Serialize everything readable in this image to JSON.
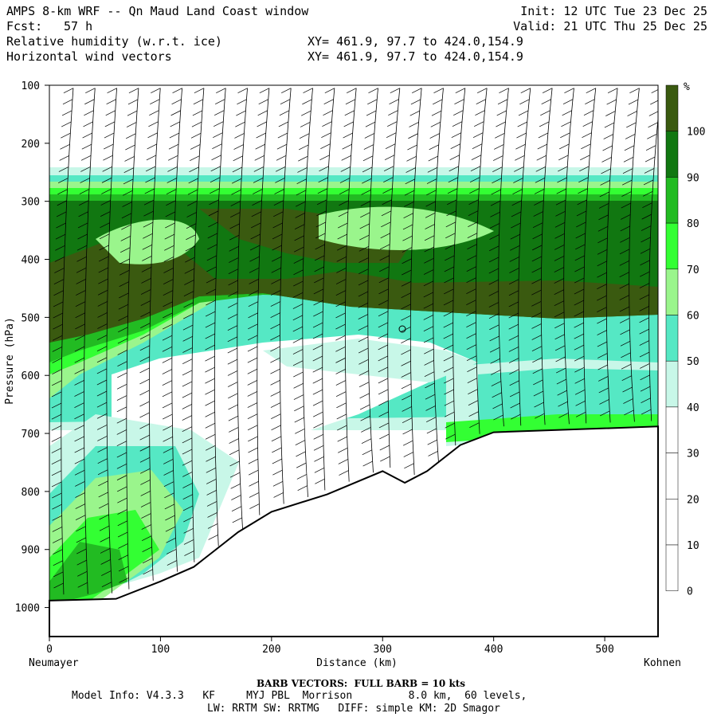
{
  "header": {
    "title_left": "AMPS 8-km WRF -- Qn Maud Land Coast window",
    "fcst_label": "Fcst:",
    "fcst_value": "57 h",
    "field1": "Relative humidity (w.r.t. ice)",
    "field2": "Horizontal wind vectors",
    "xy1": "XY= 461.9, 97.7 to 424.0,154.9",
    "xy2": "XY= 461.9, 97.7 to 424.0,154.9",
    "init": "Init: 12 UTC Tue 23 Dec 25",
    "valid": "Valid: 21 UTC Thu 25 Dec 25"
  },
  "footer": {
    "barb_note": "BARB VECTORS:  FULL BARB = 10 kts",
    "model_info_1": "Model Info: V4.3.3   KF     MYJ PBL  Morrison         8.0 km,  60 levels,",
    "model_info_2": "LW: RRTM SW: RRTMG   DIFF: simple KM: 2D Smagor"
  },
  "chart_data": {
    "type": "heatmap",
    "title": "Relative humidity (w.r.t. ice)",
    "xlabel": "Distance (km)",
    "ylabel": "Pressure (hPa)",
    "x_left_label": "Neumayer",
    "x_right_label": "Kohnen",
    "xlim": [
      0,
      548
    ],
    "ylim": [
      1050,
      100
    ],
    "x_ticks": [
      0,
      100,
      200,
      300,
      400,
      500
    ],
    "y_ticks": [
      100,
      200,
      300,
      400,
      500,
      600,
      700,
      800,
      900,
      1000
    ],
    "colorbar": {
      "unit": "%",
      "levels": [
        0,
        10,
        20,
        30,
        40,
        50,
        60,
        70,
        80,
        90,
        100
      ],
      "colors": [
        "#ffffff",
        "#ffffff",
        "#ffffff",
        "#ffffff",
        "#c8f7e8",
        "#55e8c4",
        "#9af58c",
        "#33ff33",
        "#22bb22",
        "#117711",
        "#3a5a10"
      ]
    },
    "layers": [
      {
        "rh": "30-40",
        "color": "#c8f7e8"
      },
      {
        "rh": "40-50",
        "color": "#55e8c4"
      },
      {
        "rh": "50-60",
        "color": "#9af58c"
      },
      {
        "rh": "60-70",
        "color": "#33ff33"
      },
      {
        "rh": "70-80",
        "color": "#22bb22"
      },
      {
        "rh": "80-90",
        "color": "#117711"
      },
      {
        "rh": ">90",
        "color": "#3a5a10"
      }
    ],
    "terrain_pressure": [
      {
        "x": 0,
        "p": 988
      },
      {
        "x": 60,
        "p": 985
      },
      {
        "x": 100,
        "p": 955
      },
      {
        "x": 130,
        "p": 930
      },
      {
        "x": 150,
        "p": 900
      },
      {
        "x": 170,
        "p": 870
      },
      {
        "x": 200,
        "p": 835
      },
      {
        "x": 250,
        "p": 805
      },
      {
        "x": 300,
        "p": 765
      },
      {
        "x": 320,
        "p": 785
      },
      {
        "x": 340,
        "p": 765
      },
      {
        "x": 370,
        "p": 720
      },
      {
        "x": 400,
        "p": 698
      },
      {
        "x": 548,
        "p": 688
      }
    ]
  }
}
